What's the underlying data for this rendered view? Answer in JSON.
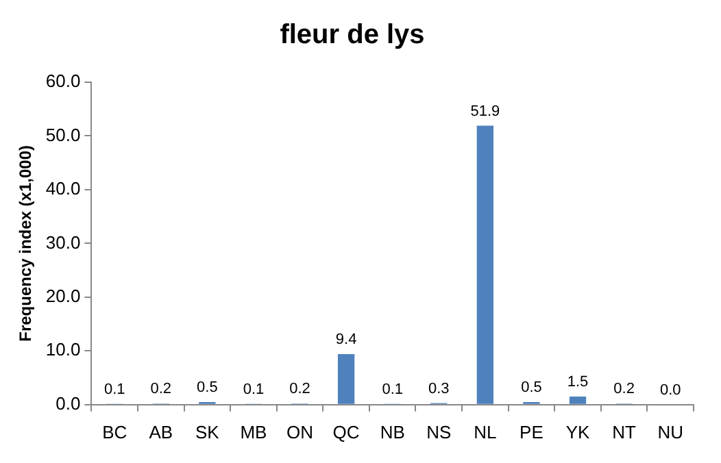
{
  "chart_data": {
    "type": "bar",
    "title": "fleur de lys",
    "ylabel": "Frequency index (x1,000)",
    "categories": [
      "BC",
      "AB",
      "SK",
      "MB",
      "ON",
      "QC",
      "NB",
      "NS",
      "NL",
      "PE",
      "YK",
      "NT",
      "NU"
    ],
    "values": [
      0.1,
      0.2,
      0.5,
      0.1,
      0.2,
      9.4,
      0.1,
      0.3,
      51.9,
      0.5,
      1.5,
      0.2,
      0.0
    ],
    "value_labels": [
      "0.1",
      "0.2",
      "0.5",
      "0.1",
      "0.2",
      "9.4",
      "0.1",
      "0.3",
      "51.9",
      "0.5",
      "1.5",
      "0.2",
      "0.0"
    ],
    "color": "#4f81bd",
    "ylim": [
      0,
      60
    ],
    "yticks": [
      {
        "value": 0,
        "label": "0.0"
      },
      {
        "value": 10,
        "label": "10.0"
      },
      {
        "value": 20,
        "label": "20.0"
      },
      {
        "value": 30,
        "label": "30.0"
      },
      {
        "value": 40,
        "label": "40.0"
      },
      {
        "value": 50,
        "label": "50.0"
      },
      {
        "value": 60,
        "label": "60.0"
      }
    ],
    "grid": false,
    "legend": false
  }
}
